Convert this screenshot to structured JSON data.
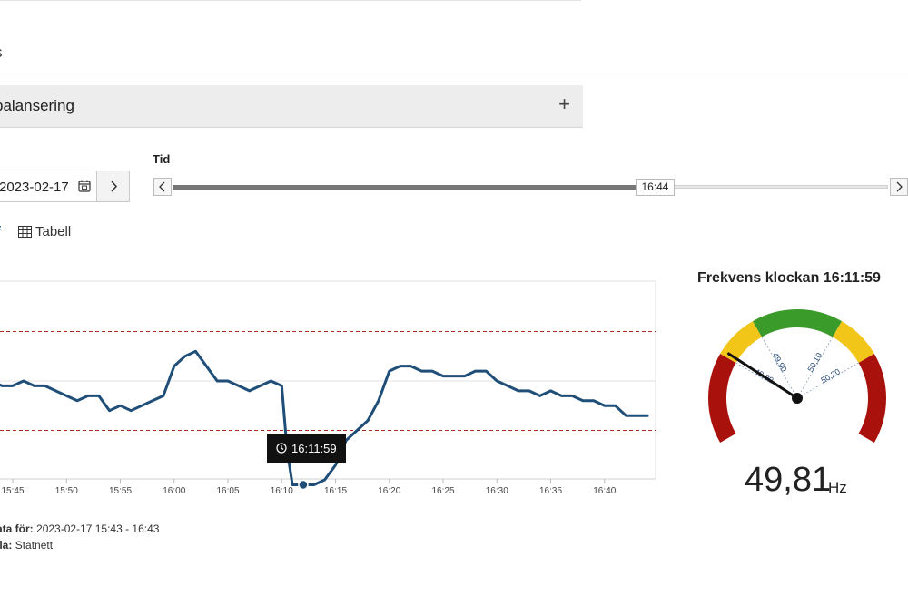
{
  "header": {
    "section_label": "s"
  },
  "accordion": {
    "title": "balansering",
    "toggle_icon": "plus-icon"
  },
  "date_picker": {
    "value": "2023-02-17",
    "calendar_icon": "calendar-icon",
    "next_icon": "chevron-right-icon"
  },
  "time_slider": {
    "label": "Tid",
    "value": "16:44",
    "progress": 0.67
  },
  "view_tabs": {
    "graph_label": "f",
    "table_label": "Tabell"
  },
  "chart_data": {
    "type": "line",
    "x_ticks": [
      "15:45",
      "15:50",
      "15:55",
      "16:00",
      "16:05",
      "16:10",
      "16:15",
      "16:20",
      "16:25",
      "16:30",
      "16:35",
      "16:40"
    ],
    "x_start": "15:43",
    "x_end": "16:44",
    "reference_lines": [
      50.1,
      49.9
    ],
    "series": [
      {
        "color": "#1f4e79",
        "x": [
          "15:43",
          "15:44",
          "15:45",
          "15:46",
          "15:47",
          "15:48",
          "15:49",
          "15:50",
          "15:51",
          "15:52",
          "15:53",
          "15:54",
          "15:55",
          "15:56",
          "15:57",
          "15:58",
          "15:59",
          "16:00",
          "16:01",
          "16:02",
          "16:03",
          "16:04",
          "16:05",
          "16:06",
          "16:07",
          "16:08",
          "16:09",
          "16:10",
          "16:10.5",
          "16:11",
          "16:12",
          "16:13",
          "16:14",
          "16:15",
          "16:16",
          "16:17",
          "16:18",
          "16:19",
          "16:20",
          "16:21",
          "16:22",
          "16:23",
          "16:24",
          "16:25",
          "16:26",
          "16:27",
          "16:28",
          "16:29",
          "16:30",
          "16:31",
          "16:32",
          "16:33",
          "16:34",
          "16:35",
          "16:36",
          "16:37",
          "16:38",
          "16:39",
          "16:40",
          "16:41",
          "16:42",
          "16:43",
          "16:44"
        ],
        "y": [
          50.0,
          49.99,
          49.99,
          50.0,
          49.99,
          49.99,
          49.98,
          49.97,
          49.96,
          49.97,
          49.97,
          49.94,
          49.95,
          49.94,
          49.95,
          49.96,
          49.97,
          50.03,
          50.05,
          50.06,
          50.03,
          50.0,
          50.0,
          49.99,
          49.98,
          49.99,
          50.0,
          49.99,
          49.86,
          49.79,
          49.79,
          49.79,
          49.8,
          49.83,
          49.88,
          49.9,
          49.92,
          49.96,
          50.02,
          50.03,
          50.03,
          50.02,
          50.02,
          50.01,
          50.01,
          50.01,
          50.02,
          50.02,
          50.0,
          49.99,
          49.98,
          49.98,
          49.97,
          49.98,
          49.97,
          49.97,
          49.96,
          49.96,
          49.95,
          49.95,
          49.93,
          49.93,
          49.93
        ]
      }
    ],
    "tooltip": {
      "time": "16:11:59",
      "icon": "clock-icon"
    }
  },
  "footer": {
    "data_label": "ata för:",
    "data_value": "2023-02-17 15:43 - 16:43",
    "source_label": "lla:",
    "source_value": "Statnett"
  },
  "gauge": {
    "title": "Frekvens klockan 16:11:59",
    "value": "49,81",
    "unit": "Hz",
    "needle_value": 49.81,
    "scale_labels": [
      "49,80",
      "49,90",
      "50,10",
      "50,20"
    ],
    "colors": {
      "green": "#3a9a2a",
      "yellow": "#f2c618",
      "red": "#a8110c",
      "needle": "#111111"
    }
  }
}
